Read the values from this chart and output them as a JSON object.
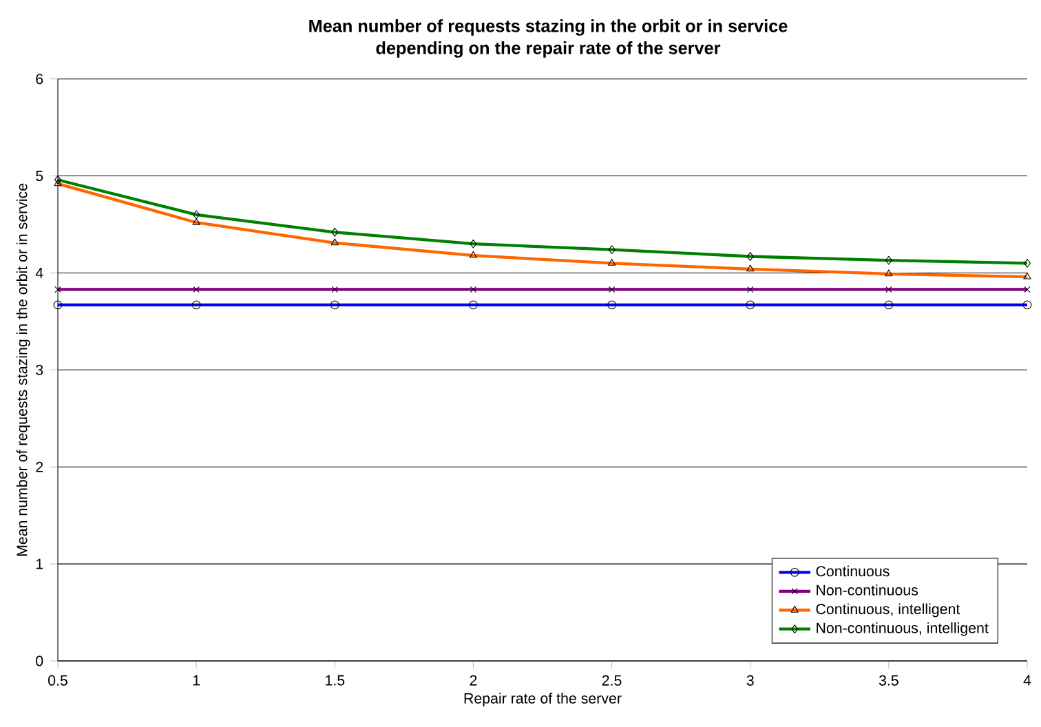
{
  "chart_data": {
    "type": "line",
    "title": "Mean number of requests stazing in the orbit or in service\ndepending on the repair rate of the server",
    "xlabel": "Repair rate of the server",
    "ylabel": "Mean number of requests stazing in the orbit or in service",
    "x": [
      0.5,
      1,
      1.5,
      2,
      2.5,
      3,
      3.5,
      4
    ],
    "series": [
      {
        "name": "Continuous",
        "color": "#0000ff",
        "marker": "circle",
        "values": [
          3.67,
          3.67,
          3.67,
          3.67,
          3.67,
          3.67,
          3.67,
          3.67
        ]
      },
      {
        "name": "Non-continuous",
        "color": "#800080",
        "marker": "cross",
        "values": [
          3.83,
          3.83,
          3.83,
          3.83,
          3.83,
          3.83,
          3.83,
          3.83
        ]
      },
      {
        "name": "Continuous, intelligent",
        "color": "#ff6600",
        "marker": "triangle",
        "values": [
          4.92,
          4.52,
          4.31,
          4.18,
          4.1,
          4.04,
          3.99,
          3.96
        ]
      },
      {
        "name": "Non-continuous, intelligent",
        "color": "#008000",
        "marker": "diamond",
        "values": [
          4.96,
          4.6,
          4.42,
          4.3,
          4.24,
          4.17,
          4.13,
          4.1
        ]
      }
    ],
    "xlim": [
      0.5,
      4
    ],
    "xticks": [
      0.5,
      1,
      1.5,
      2,
      2.5,
      3,
      3.5,
      4
    ],
    "ylim": [
      0,
      6
    ],
    "yticks": [
      0,
      1,
      2,
      3,
      4,
      5,
      6
    ],
    "grid": "y",
    "legend": "bottom right",
    "line_style": "solid"
  }
}
